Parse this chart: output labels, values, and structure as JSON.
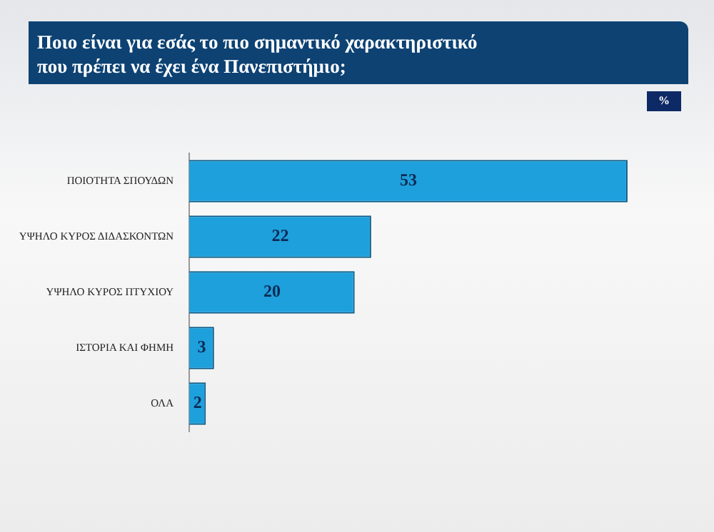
{
  "chart_data": {
    "type": "bar",
    "orientation": "horizontal",
    "title": "Ποιο είναι για εσάς το πιο σημαντικό χαρακτηριστικό\nπου πρέπει να έχει ένα Πανεπιστήμιο;",
    "categories": [
      "ΠΟΙΟΤΗΤΑ ΣΠΟΥΔΩΝ",
      "ΥΨΗΛΟ ΚΥΡΟΣ ΔΙΔΑΣΚΟΝΤΩΝ",
      "ΥΨΗΛΟ ΚΥΡΟΣ ΠΤΥΧΙΟΥ",
      "ΙΣΤΟΡΙΑ ΚΑΙ ΦΗΜΗ",
      "ΟΛΑ"
    ],
    "values": [
      53,
      22,
      20,
      3,
      2
    ],
    "color": "#1ea0dc",
    "data_labels": true,
    "grid": false,
    "legend": false,
    "tick_labels": "y",
    "annotations": [
      "%"
    ]
  }
}
